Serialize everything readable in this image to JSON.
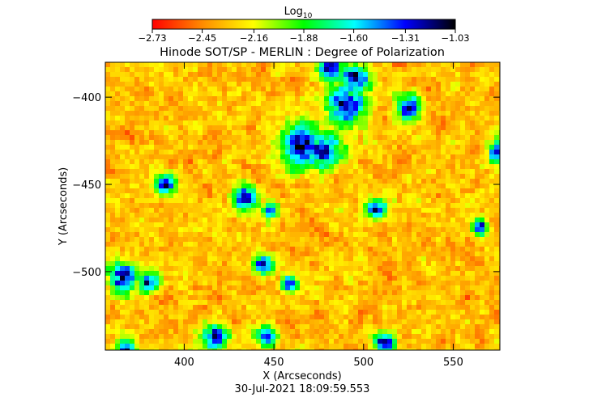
{
  "chart_data": {
    "type": "heatmap",
    "title": "Hinode SOT/SP - MERLIN : Degree of Polarization",
    "xlabel": "X (Arcseconds)",
    "ylabel": "Y (Arcseconds)",
    "xlim": [
      356,
      576
    ],
    "ylim": [
      -545,
      -380
    ],
    "x_ticks": [
      400,
      450,
      500,
      550
    ],
    "x_tick_labels": [
      "400",
      "450",
      "500",
      "550"
    ],
    "y_ticks": [
      -400,
      -450,
      -500
    ],
    "y_tick_labels": [
      "−400",
      "−450",
      "−500"
    ],
    "colorbar": {
      "label_base": "Log",
      "label_sub": "10",
      "range": [
        -2.73,
        -1.03
      ],
      "tick_values": [
        -2.73,
        -2.45,
        -2.16,
        -1.88,
        -1.6,
        -1.31,
        -1.03
      ],
      "tick_labels": [
        "−2.73",
        "−2.45",
        "−2.16",
        "−1.88",
        "−1.60",
        "−1.31",
        "−1.03"
      ],
      "colormap": [
        "#ff0000",
        "#ff8c00",
        "#ffff00",
        "#00ff00",
        "#00ffff",
        "#0000ff",
        "#000000"
      ]
    },
    "features": [
      {
        "x": 466,
        "y": -428,
        "r": 9
      },
      {
        "x": 478,
        "y": -430,
        "r": 7
      },
      {
        "x": 490,
        "y": -405,
        "r": 8
      },
      {
        "x": 495,
        "y": -390,
        "r": 6
      },
      {
        "x": 482,
        "y": -384,
        "r": 5
      },
      {
        "x": 525,
        "y": -406,
        "r": 5
      },
      {
        "x": 434,
        "y": -458,
        "r": 5
      },
      {
        "x": 448,
        "y": -465,
        "r": 3
      },
      {
        "x": 507,
        "y": -464,
        "r": 4
      },
      {
        "x": 390,
        "y": -450,
        "r": 4
      },
      {
        "x": 366,
        "y": -503,
        "r": 6
      },
      {
        "x": 380,
        "y": -507,
        "r": 4
      },
      {
        "x": 444,
        "y": -496,
        "r": 4
      },
      {
        "x": 459,
        "y": -507,
        "r": 3
      },
      {
        "x": 417,
        "y": -538,
        "r": 5
      },
      {
        "x": 446,
        "y": -537,
        "r": 4
      },
      {
        "x": 512,
        "y": -541,
        "r": 4
      },
      {
        "x": 565,
        "y": -475,
        "r": 3
      },
      {
        "x": 368,
        "y": -545,
        "r": 4
      },
      {
        "x": 575,
        "y": -432,
        "r": 4
      }
    ],
    "grid": false,
    "legend": "none"
  },
  "footer_timestamp": "30-Jul-2021  18:09:59.553"
}
